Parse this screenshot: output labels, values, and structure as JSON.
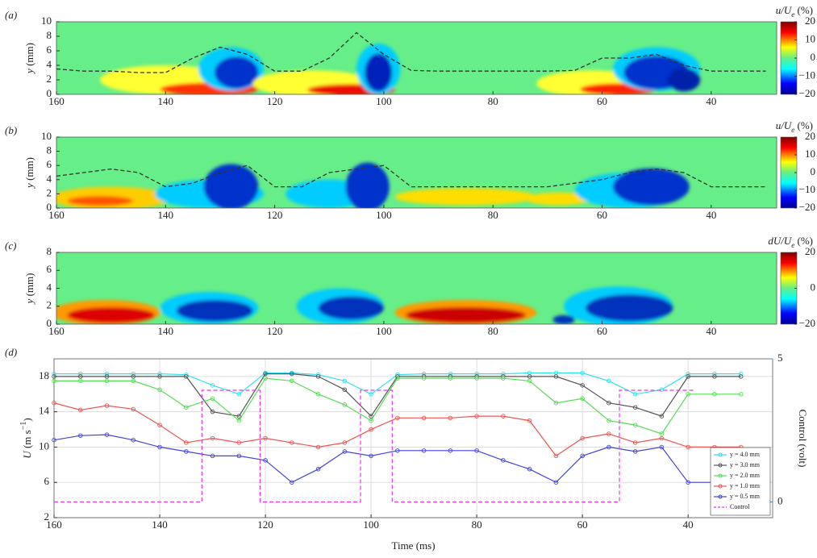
{
  "chart_data": [
    {
      "type": "contour",
      "panel_label": "(a)",
      "ylabel": [
        "y",
        " (mm)"
      ],
      "xlim": [
        160,
        28
      ],
      "xticks": [
        160,
        140,
        120,
        100,
        80,
        60,
        40
      ],
      "ylim": [
        0,
        10
      ],
      "yticks": [
        0,
        2,
        4,
        6,
        8,
        10
      ],
      "colormap": "jet",
      "background_color": "#66ee88",
      "colorbar": {
        "label": [
          "u/U",
          "e",
          " (%)"
        ],
        "lim": [
          -20,
          20
        ],
        "ticks": [
          20,
          10,
          0,
          {
            "value": -10,
            "label": "−10"
          },
          {
            "value": -20,
            "label": "−20"
          }
        ]
      },
      "x": [
        160,
        155,
        150,
        145,
        140,
        135,
        130,
        125,
        120,
        115,
        110,
        105,
        100,
        95,
        90,
        85,
        80,
        75,
        70,
        65,
        60,
        55,
        50,
        45,
        40,
        35,
        30
      ],
      "series": [
        {
          "color": "#333333",
          "dash": true,
          "values": [
            3.5,
            3.2,
            3.2,
            3,
            3,
            5,
            6.5,
            5.5,
            3.2,
            3.2,
            5,
            8.5,
            5.5,
            3.3,
            3.2,
            3.2,
            3.2,
            3.2,
            3.2,
            3.3,
            5,
            5,
            5.5,
            4,
            3.2,
            3.2,
            3.2
          ]
        }
      ]
    },
    {
      "type": "contour",
      "panel_label": "(b)",
      "ylabel": [
        "y",
        " (mm)"
      ],
      "xlim": [
        160,
        28
      ],
      "xticks": [
        160,
        140,
        120,
        100,
        80,
        60,
        40
      ],
      "ylim": [
        0,
        10
      ],
      "yticks": [
        0,
        2,
        4,
        6,
        8,
        10
      ],
      "colormap": "jet",
      "background_color": "#66ee88",
      "colorbar": {
        "label": [
          "u/U",
          "e",
          " (%)"
        ],
        "lim": [
          -20,
          20
        ],
        "ticks": [
          20,
          10,
          0,
          {
            "value": -10,
            "label": "−10"
          },
          {
            "value": -20,
            "label": "−20"
          }
        ]
      },
      "x": [
        160,
        155,
        150,
        145,
        140,
        135,
        130,
        125,
        120,
        115,
        110,
        105,
        100,
        95,
        90,
        85,
        80,
        75,
        70,
        65,
        60,
        55,
        50,
        45,
        40,
        35,
        30
      ],
      "series": [
        {
          "color": "#333333",
          "dash": true,
          "values": [
            4.5,
            5,
            5.5,
            5,
            3,
            3.5,
            5,
            6,
            3,
            3,
            5,
            5.5,
            6,
            3,
            3,
            3,
            3,
            3,
            3,
            3.5,
            4,
            5,
            5.5,
            5,
            3,
            3,
            3
          ]
        }
      ]
    },
    {
      "type": "contour",
      "panel_label": "(c)",
      "ylabel": [
        "y",
        " (mm)"
      ],
      "xlim": [
        160,
        28
      ],
      "xticks": [
        160,
        140,
        120,
        100,
        80,
        60,
        40
      ],
      "ylim": [
        0,
        8
      ],
      "yticks": [
        0,
        2,
        4,
        6,
        8
      ],
      "colormap": "jet",
      "background_color": "#66ee88",
      "colorbar": {
        "label": [
          "dU/U",
          "e",
          " (%)"
        ],
        "lim": [
          -20,
          20
        ],
        "ticks": [
          20,
          0,
          {
            "value": -20,
            "label": "−20"
          }
        ]
      }
    },
    {
      "type": "line",
      "panel_label": "(d)",
      "xlabel": "Time (ms)",
      "ylabel": [
        "U",
        " (m s",
        "−1",
        ")"
      ],
      "y2label": "Control (volt)",
      "xlim": [
        160,
        24
      ],
      "xticks": [
        160,
        140,
        120,
        100,
        80,
        60,
        40
      ],
      "ylim": [
        2,
        20
      ],
      "yticks": [
        2,
        6,
        10,
        14,
        18
      ],
      "y2lim": [
        -0.55,
        5
      ],
      "y2ticks": [
        0,
        5
      ],
      "y2_color": "#3399cc",
      "grid": true,
      "legend": "lower right",
      "x": [
        160,
        155,
        150,
        145,
        140,
        135,
        130,
        125,
        120,
        115,
        110,
        105,
        100,
        95,
        90,
        85,
        80,
        75,
        70,
        65,
        60,
        55,
        50,
        45,
        40,
        35,
        30
      ],
      "series": [
        {
          "name": "y = 4.0 mm",
          "color": "#33e0f0",
          "values": [
            18.3,
            18.3,
            18.3,
            18.3,
            18.3,
            18.2,
            17,
            16,
            18.4,
            18.4,
            18.2,
            17.5,
            16,
            18.2,
            18.3,
            18.3,
            18.3,
            18.3,
            18.4,
            18.4,
            18.4,
            17.5,
            16,
            16.5,
            18.3,
            18.3,
            18.3
          ]
        },
        {
          "name": "y = 3.0 mm",
          "color": "#555555",
          "values": [
            18,
            18,
            18,
            18,
            18,
            18,
            14,
            13.5,
            18.3,
            18.3,
            18,
            16.5,
            13.5,
            18,
            18,
            18,
            18,
            18,
            18,
            18,
            17,
            15,
            14.5,
            13.5,
            18,
            18,
            18
          ]
        },
        {
          "name": "y = 2.0 mm",
          "color": "#55dd55",
          "values": [
            17.5,
            17.5,
            17.5,
            17.5,
            16.5,
            14.5,
            15.5,
            13,
            17.8,
            17.5,
            16,
            14.8,
            13,
            17.8,
            17.8,
            17.8,
            17.8,
            17.8,
            17.5,
            15,
            15.5,
            13,
            12.5,
            11.5,
            16,
            16,
            16
          ]
        },
        {
          "name": "y = 1.0 mm",
          "color": "#ee5555",
          "values": [
            15,
            14.2,
            14.7,
            14.3,
            12.5,
            10.5,
            11,
            10.5,
            11,
            10.5,
            10,
            10.5,
            12,
            13.3,
            13.3,
            13.3,
            13.5,
            13.5,
            13,
            9,
            11,
            11.5,
            10.5,
            11,
            10,
            10,
            10
          ]
        },
        {
          "name": "y = 0.5 mm",
          "color": "#4444dd",
          "values": [
            10.8,
            11.3,
            11.4,
            10.8,
            10,
            9.5,
            9,
            9,
            8.5,
            6,
            7.5,
            9.5,
            9,
            9.6,
            9.6,
            9.6,
            9.6,
            8.5,
            7.5,
            6,
            9,
            10,
            9.5,
            10,
            6,
            6,
            6
          ]
        },
        {
          "name": "Control",
          "color": "#ee33ee",
          "axis": "y2",
          "dash": true,
          "x": [
            160,
            132,
            132,
            121,
            121,
            102,
            102,
            96,
            96,
            53,
            53,
            39
          ],
          "values": [
            0,
            0,
            3.9,
            3.9,
            0,
            0,
            3.9,
            3.9,
            0,
            0,
            3.9,
            3.9
          ]
        }
      ]
    }
  ]
}
